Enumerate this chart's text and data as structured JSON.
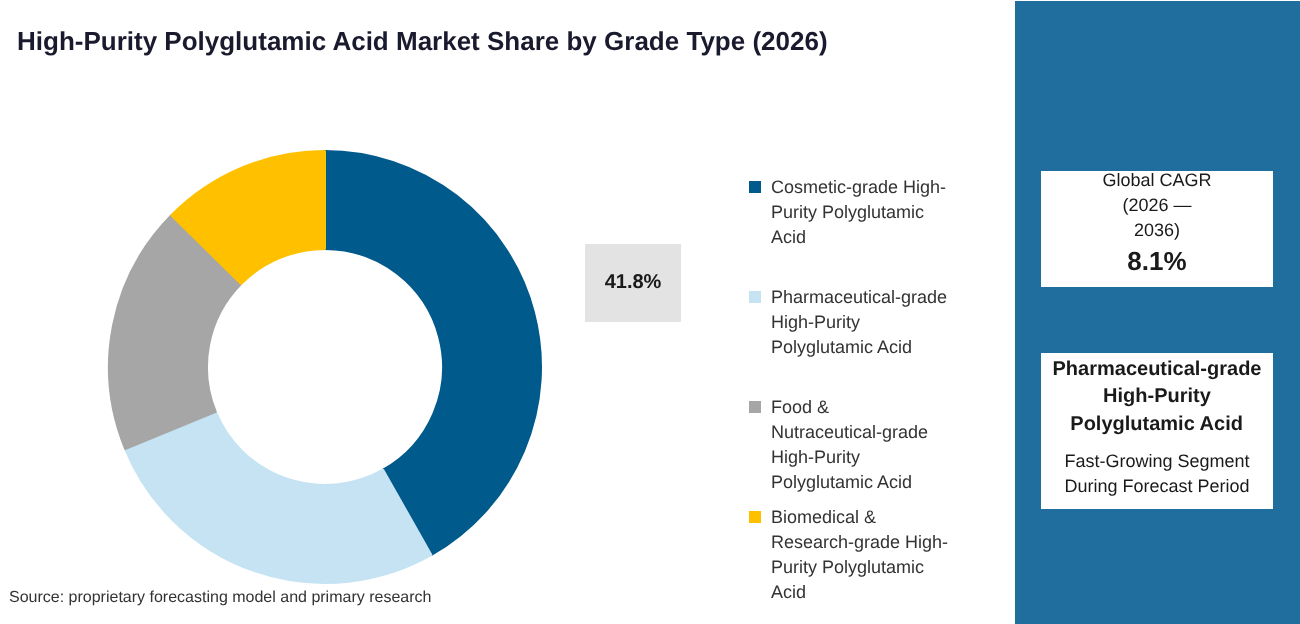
{
  "chart_data": {
    "type": "donut",
    "title": "High-Purity Polyglutamic Acid Market Share by Grade Type (2026)",
    "categories": [
      "Cosmetic-grade High-Purity Polyglutamic Acid",
      "Pharmaceutical-grade High-Purity Polyglutamic Acid",
      "Food & Nutraceutical-grade High-Purity Polyglutamic Acid",
      "Biomedical & Research-grade High-Purity Polyglutamic Acid"
    ],
    "values": [
      41.8,
      27.0,
      18.6,
      12.6
    ],
    "colors": [
      "#005a8c",
      "#c5e3f3",
      "#a6a6a6",
      "#ffc000"
    ],
    "value_labels": [
      "41.8%",
      null,
      null,
      null
    ],
    "legend": "right",
    "annotations": [
      "Source: proprietary forecasting model and primary research",
      "Global CAGR (2026 — 2036)",
      "8.1%",
      "Pharmaceutical-grade High-Purity Polyglutamic Acid",
      "Fast-Growing Segment During Forecast Period"
    ]
  }
}
